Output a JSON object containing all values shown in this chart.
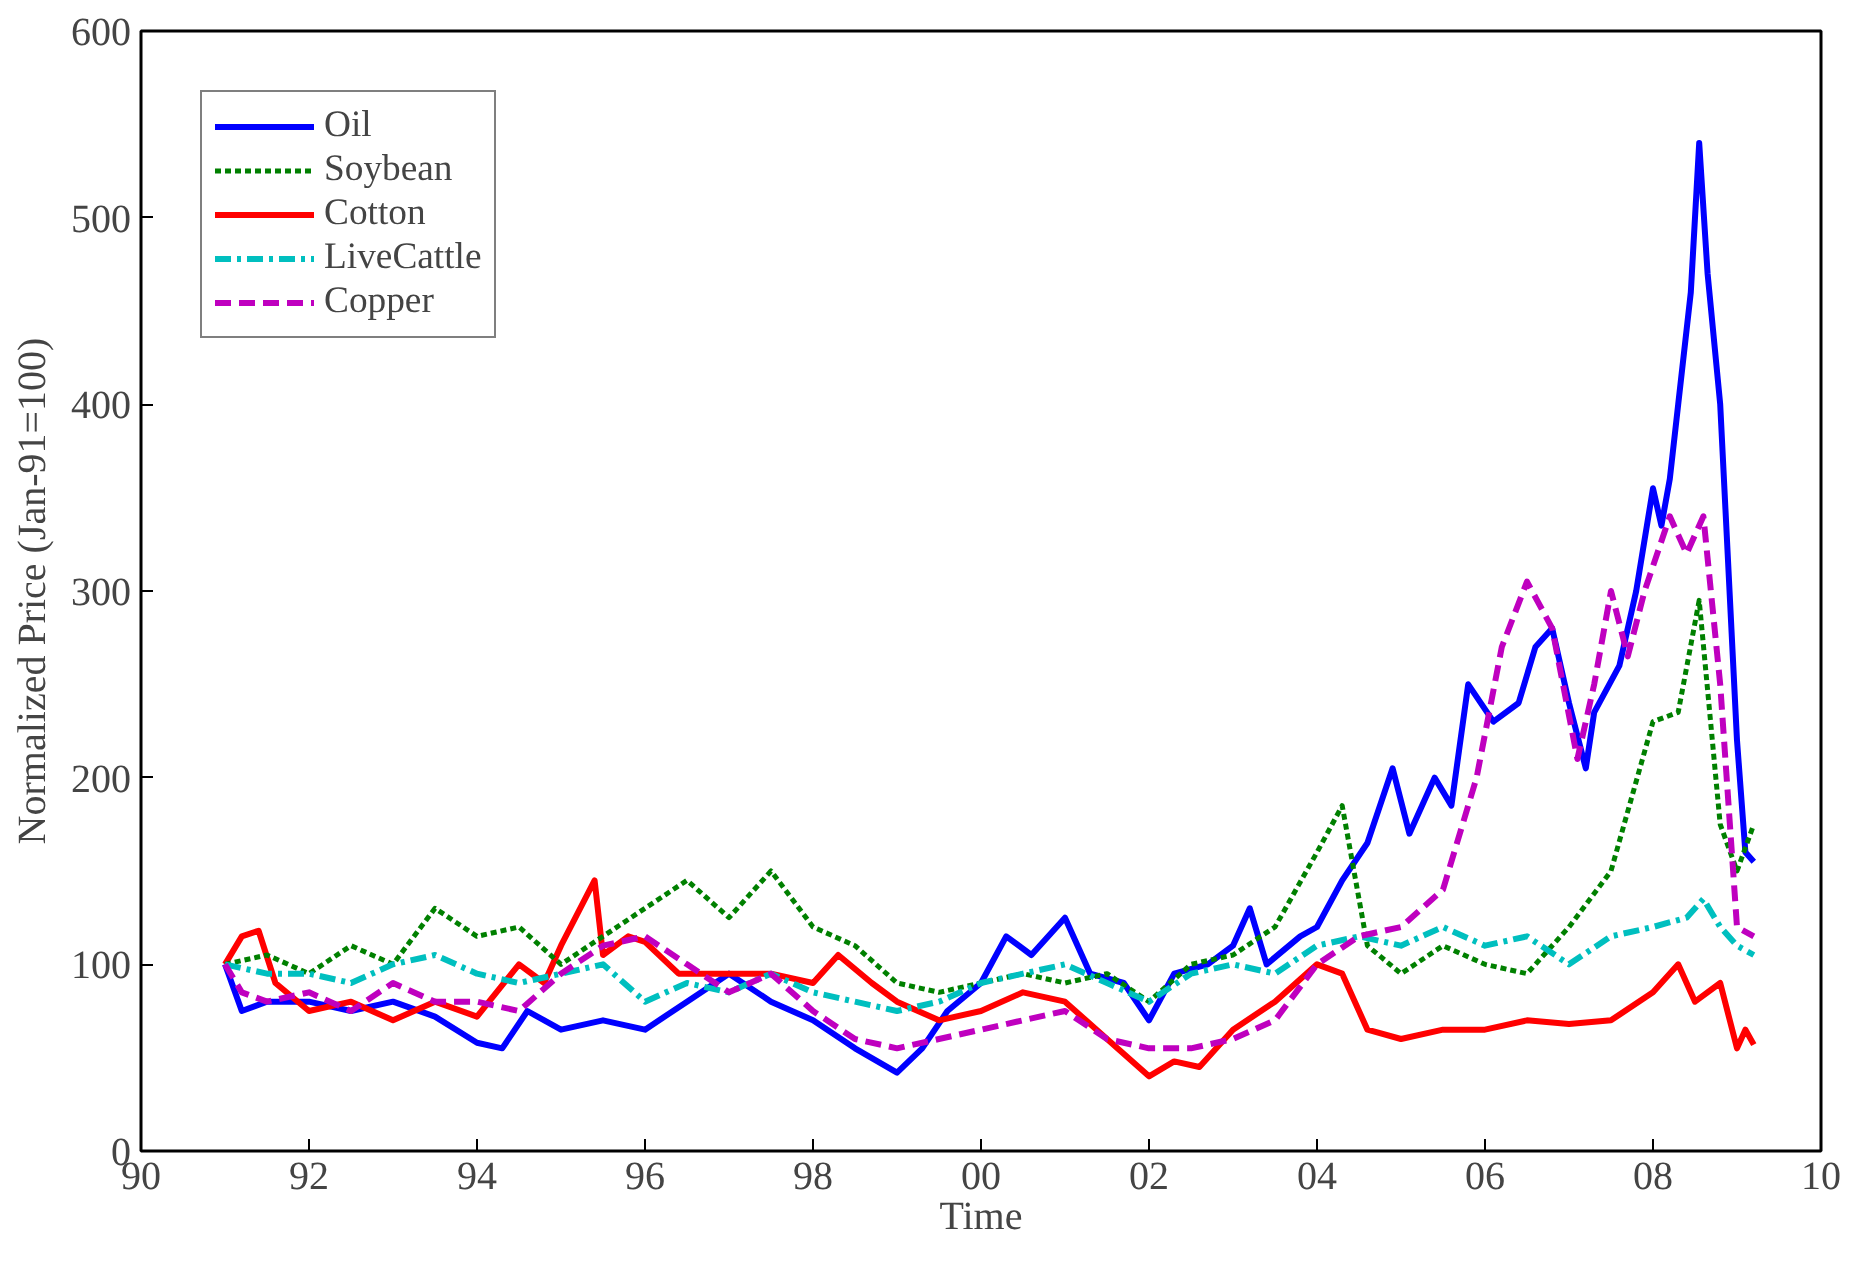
{
  "chart_data": {
    "type": "line",
    "xlabel": "Time",
    "ylabel": "Normalized Price (Jan-91=100)",
    "xlim": [
      1990,
      2010
    ],
    "xticks": [
      {
        "value": 1990,
        "label": "90"
      },
      {
        "value": 1992,
        "label": "92"
      },
      {
        "value": 1994,
        "label": "94"
      },
      {
        "value": 1996,
        "label": "96"
      },
      {
        "value": 1998,
        "label": "98"
      },
      {
        "value": 2000,
        "label": "00"
      },
      {
        "value": 2002,
        "label": "02"
      },
      {
        "value": 2004,
        "label": "04"
      },
      {
        "value": 2006,
        "label": "06"
      },
      {
        "value": 2008,
        "label": "08"
      },
      {
        "value": 2010,
        "label": "10"
      }
    ],
    "ylim": [
      0,
      600
    ],
    "yticks": [
      0,
      100,
      200,
      300,
      400,
      500,
      600
    ],
    "grid": false,
    "legend": "top left",
    "series": [
      {
        "name": "Oil",
        "color": "#0000ff",
        "line_style": "solid",
        "x": [
          1991.0,
          1991.2,
          1991.5,
          1992.0,
          1992.5,
          1993.0,
          1993.5,
          1994.0,
          1994.3,
          1994.6,
          1995.0,
          1995.5,
          1996.0,
          1996.5,
          1997.0,
          1997.5,
          1998.0,
          1998.5,
          1999.0,
          1999.3,
          1999.6,
          2000.0,
          2000.3,
          2000.6,
          2001.0,
          2001.3,
          2001.7,
          2002.0,
          2002.3,
          2002.7,
          2003.0,
          2003.2,
          2003.4,
          2003.8,
          2004.0,
          2004.3,
          2004.6,
          2004.9,
          2005.1,
          2005.4,
          2005.6,
          2005.8,
          2006.1,
          2006.4,
          2006.6,
          2006.8,
          2007.0,
          2007.2,
          2007.3,
          2007.6,
          2007.8,
          2008.0,
          2008.1,
          2008.2,
          2008.3,
          2008.45,
          2008.55,
          2008.65,
          2008.8,
          2009.0,
          2009.1,
          2009.2
        ],
        "values": [
          100,
          75,
          80,
          80,
          75,
          80,
          72,
          58,
          55,
          75,
          65,
          70,
          65,
          80,
          95,
          80,
          70,
          55,
          42,
          55,
          75,
          90,
          115,
          105,
          125,
          95,
          90,
          70,
          95,
          100,
          110,
          130,
          100,
          115,
          120,
          145,
          165,
          205,
          170,
          200,
          185,
          250,
          230,
          240,
          270,
          280,
          240,
          205,
          235,
          260,
          300,
          355,
          335,
          360,
          400,
          460,
          540,
          470,
          400,
          220,
          160,
          155
        ]
      },
      {
        "name": "Soybean",
        "color": "#008000",
        "line_style": "dotted",
        "x": [
          1991.0,
          1991.5,
          1992.0,
          1992.5,
          1993.0,
          1993.5,
          1994.0,
          1994.5,
          1995.0,
          1995.5,
          1996.0,
          1996.5,
          1997.0,
          1997.5,
          1998.0,
          1998.5,
          1999.0,
          1999.5,
          2000.0,
          2000.5,
          2001.0,
          2001.5,
          2002.0,
          2002.5,
          2003.0,
          2003.5,
          2004.0,
          2004.3,
          2004.6,
          2005.0,
          2005.5,
          2006.0,
          2006.5,
          2007.0,
          2007.5,
          2008.0,
          2008.3,
          2008.55,
          2008.8,
          2009.0,
          2009.2
        ],
        "values": [
          100,
          105,
          95,
          110,
          100,
          130,
          115,
          120,
          100,
          115,
          130,
          145,
          125,
          150,
          120,
          110,
          90,
          85,
          90,
          95,
          90,
          95,
          80,
          100,
          105,
          120,
          160,
          185,
          110,
          95,
          110,
          100,
          95,
          120,
          150,
          230,
          235,
          295,
          175,
          150,
          175
        ]
      },
      {
        "name": "Cotton",
        "color": "#ff0000",
        "line_style": "solid",
        "x": [
          1991.0,
          1991.2,
          1991.4,
          1991.6,
          1992.0,
          1992.5,
          1993.0,
          1993.5,
          1994.0,
          1994.5,
          1994.8,
          1995.0,
          1995.4,
          1995.5,
          1995.8,
          1996.0,
          1996.4,
          1997.0,
          1997.5,
          1998.0,
          1998.3,
          1998.7,
          1999.0,
          1999.5,
          2000.0,
          2000.5,
          2001.0,
          2001.5,
          2002.0,
          2002.3,
          2002.6,
          2003.0,
          2003.5,
          2004.0,
          2004.3,
          2004.6,
          2005.0,
          2005.5,
          2006.0,
          2006.5,
          2007.0,
          2007.5,
          2008.0,
          2008.3,
          2008.5,
          2008.8,
          2009.0,
          2009.1,
          2009.2
        ],
        "values": [
          100,
          115,
          118,
          90,
          75,
          80,
          70,
          80,
          72,
          100,
          90,
          110,
          145,
          105,
          115,
          112,
          95,
          95,
          95,
          90,
          105,
          90,
          80,
          70,
          75,
          85,
          80,
          60,
          40,
          48,
          45,
          65,
          80,
          100,
          95,
          65,
          60,
          65,
          65,
          70,
          68,
          70,
          85,
          100,
          80,
          90,
          55,
          65,
          57
        ]
      },
      {
        "name": "LiveCattle",
        "color": "#00bfbf",
        "line_style": "dashdot",
        "x": [
          1991.0,
          1991.5,
          1992.0,
          1992.5,
          1993.0,
          1993.5,
          1994.0,
          1994.5,
          1995.0,
          1995.5,
          1996.0,
          1996.5,
          1997.0,
          1997.5,
          1998.0,
          1998.5,
          1999.0,
          1999.5,
          2000.0,
          2000.5,
          2001.0,
          2001.5,
          2002.0,
          2002.5,
          2003.0,
          2003.5,
          2004.0,
          2004.5,
          2005.0,
          2005.5,
          2006.0,
          2006.5,
          2007.0,
          2007.5,
          2008.0,
          2008.4,
          2008.6,
          2008.8,
          2009.0,
          2009.2
        ],
        "values": [
          100,
          95,
          95,
          90,
          100,
          105,
          95,
          90,
          95,
          100,
          80,
          90,
          85,
          95,
          85,
          80,
          75,
          80,
          90,
          95,
          100,
          90,
          80,
          95,
          100,
          95,
          110,
          115,
          110,
          120,
          110,
          115,
          100,
          115,
          120,
          125,
          135,
          120,
          110,
          105
        ]
      },
      {
        "name": "Copper",
        "color": "#bf00bf",
        "line_style": "dashed",
        "x": [
          1991.0,
          1991.2,
          1991.5,
          1992.0,
          1992.5,
          1993.0,
          1993.5,
          1994.0,
          1994.5,
          1995.0,
          1995.5,
          1996.0,
          1996.5,
          1997.0,
          1997.5,
          1998.0,
          1998.5,
          1999.0,
          1999.5,
          2000.0,
          2000.5,
          2001.0,
          2001.5,
          2002.0,
          2002.5,
          2003.0,
          2003.5,
          2004.0,
          2004.5,
          2005.0,
          2005.5,
          2005.9,
          2006.2,
          2006.5,
          2006.8,
          2007.1,
          2007.3,
          2007.5,
          2007.7,
          2007.9,
          2008.2,
          2008.4,
          2008.6,
          2008.8,
          2009.0,
          2009.2
        ],
        "values": [
          100,
          85,
          80,
          85,
          75,
          90,
          80,
          80,
          75,
          95,
          110,
          115,
          100,
          85,
          95,
          75,
          60,
          55,
          60,
          65,
          70,
          75,
          60,
          55,
          55,
          60,
          70,
          100,
          115,
          120,
          140,
          200,
          270,
          305,
          280,
          210,
          250,
          300,
          265,
          300,
          340,
          320,
          340,
          250,
          120,
          115
        ]
      }
    ]
  }
}
